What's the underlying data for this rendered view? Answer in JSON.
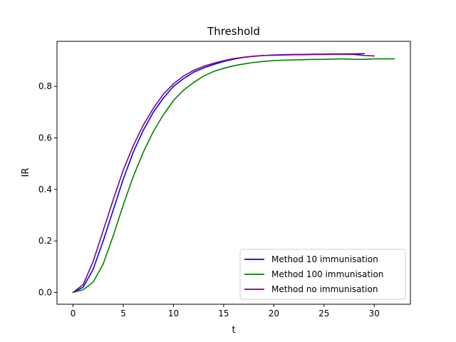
{
  "chart_data": {
    "type": "line",
    "title": "Threshold",
    "xlabel": "t",
    "ylabel": "IR",
    "xlim": [
      -1.6,
      33.6
    ],
    "ylim": [
      -0.046,
      0.975
    ],
    "xticks": [
      0,
      5,
      10,
      15,
      20,
      25,
      30
    ],
    "yticks": [
      0.0,
      0.2,
      0.4,
      0.6,
      0.8
    ],
    "xtick_labels": [
      "0",
      "5",
      "10",
      "15",
      "20",
      "25",
      "30"
    ],
    "ytick_labels": [
      "0.0",
      "0.2",
      "0.4",
      "0.6",
      "0.8"
    ],
    "grid": false,
    "legend_position": "lower-right",
    "series": [
      {
        "name": "Method 10 immunisation",
        "color": "#0000ff",
        "x": [
          0,
          1,
          2,
          3,
          4,
          5,
          6,
          7,
          8,
          9,
          10,
          11,
          12,
          13,
          14,
          15,
          16,
          17,
          18,
          19,
          20,
          21,
          22,
          23,
          24,
          25,
          26,
          27,
          28,
          29
        ],
        "y": [
          0,
          0.02,
          0.09,
          0.2,
          0.32,
          0.44,
          0.545,
          0.63,
          0.7,
          0.755,
          0.8,
          0.83,
          0.855,
          0.872,
          0.885,
          0.897,
          0.906,
          0.913,
          0.917,
          0.92,
          0.922,
          0.923,
          0.924,
          0.924,
          0.925,
          0.925,
          0.926,
          0.926,
          0.926,
          0.927
        ]
      },
      {
        "name": "Method 100 immunisation",
        "color": "#008000",
        "x": [
          0,
          1,
          2,
          3,
          4,
          5,
          6,
          7,
          8,
          9,
          10,
          11,
          12,
          13,
          14,
          15,
          16,
          17,
          18,
          19,
          20,
          21,
          22,
          23,
          24,
          25,
          26,
          27,
          28,
          29,
          30,
          31,
          32
        ],
        "y": [
          0,
          0.01,
          0.04,
          0.11,
          0.22,
          0.34,
          0.45,
          0.545,
          0.625,
          0.69,
          0.745,
          0.785,
          0.815,
          0.84,
          0.858,
          0.87,
          0.88,
          0.887,
          0.893,
          0.897,
          0.9,
          0.902,
          0.903,
          0.904,
          0.905,
          0.905,
          0.906,
          0.907,
          0.905,
          0.905,
          0.907,
          0.907,
          0.907
        ]
      },
      {
        "name": "Method no immunisation",
        "color": "#800080",
        "x": [
          0,
          1,
          2,
          3,
          4,
          5,
          6,
          7,
          8,
          9,
          10,
          11,
          12,
          13,
          14,
          15,
          16,
          17,
          18,
          19,
          20,
          21,
          22,
          23,
          24,
          25,
          26,
          27,
          28,
          29,
          30
        ],
        "y": [
          0,
          0.03,
          0.12,
          0.24,
          0.36,
          0.475,
          0.57,
          0.65,
          0.715,
          0.77,
          0.81,
          0.84,
          0.862,
          0.878,
          0.89,
          0.9,
          0.908,
          0.913,
          0.917,
          0.92,
          0.921,
          0.922,
          0.923,
          0.923,
          0.924,
          0.924,
          0.925,
          0.925,
          0.924,
          0.92,
          0.918
        ]
      }
    ]
  }
}
